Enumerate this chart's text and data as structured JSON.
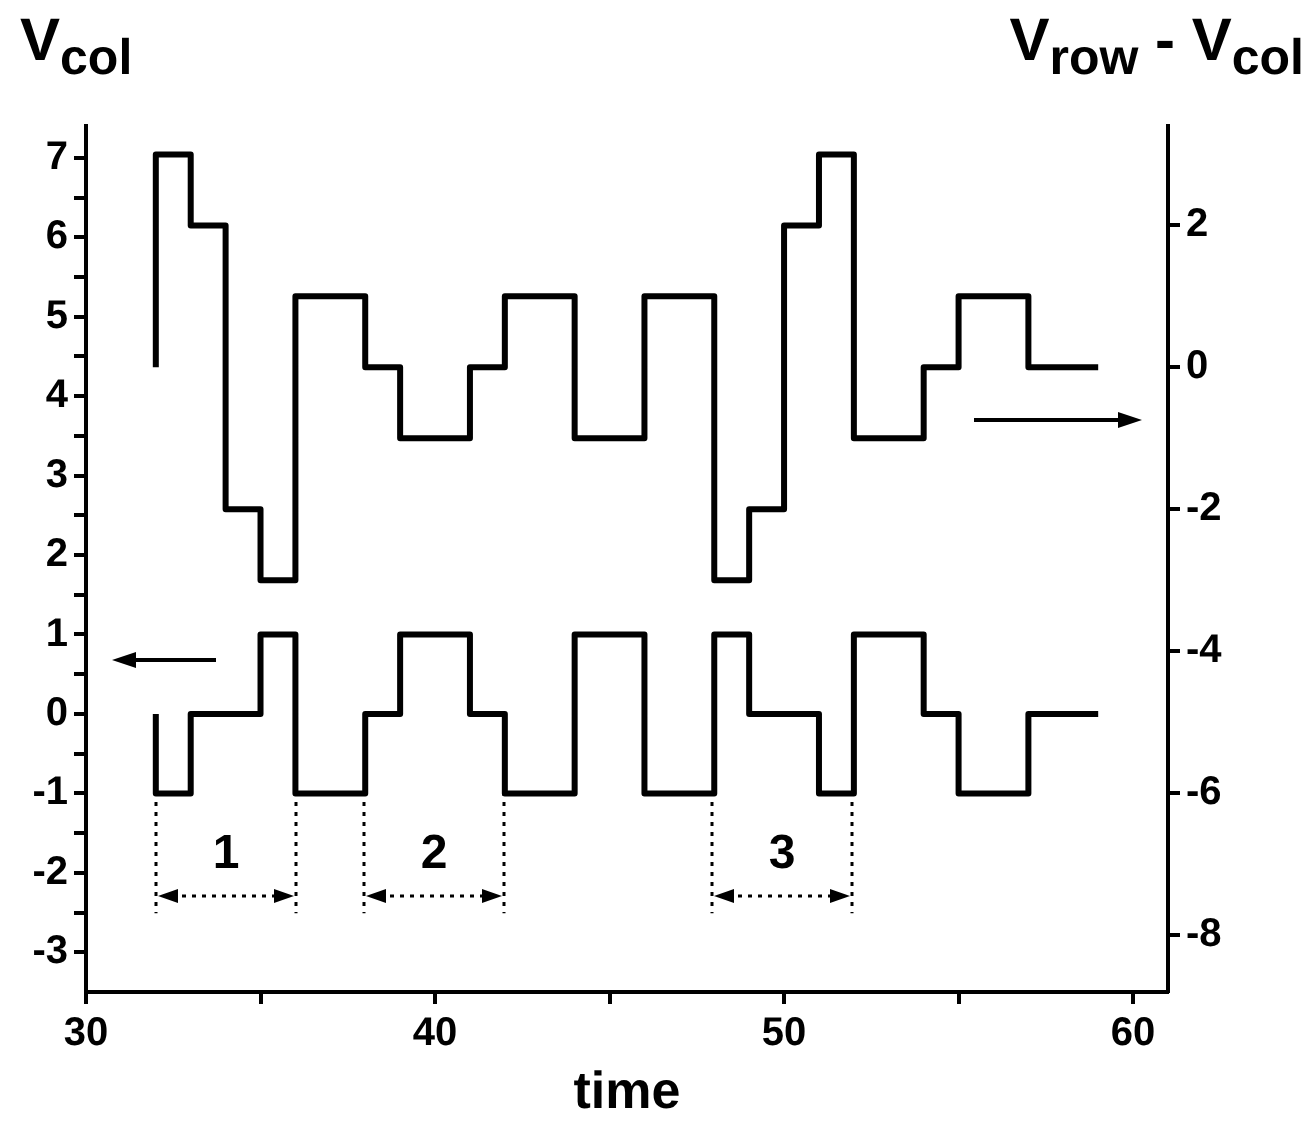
{
  "chart_data": {
    "type": "step",
    "xlabel": "time",
    "ylabel": "V$_{col}$",
    "y2label": "V$_{row}$ - V$_{col}$",
    "xlim": [
      30,
      61
    ],
    "xticks": [
      30,
      {
        "value": 35,
        "label": null
      },
      40,
      {
        "value": 45,
        "label": null
      },
      50,
      {
        "value": 55,
        "label": null
      },
      60
    ],
    "ylim": [
      -3.5,
      7.4
    ],
    "yticks": [
      -3,
      {
        "value": -2.5,
        "label": null
      },
      -2,
      {
        "value": -1.5,
        "label": null
      },
      -1,
      {
        "value": -0.5,
        "label": null
      },
      0,
      {
        "value": 0.5,
        "label": null
      },
      1,
      {
        "value": 1.5,
        "label": null
      },
      2,
      {
        "value": 2.5,
        "label": null
      },
      3,
      {
        "value": 3.5,
        "label": null
      },
      4,
      {
        "value": 4.5,
        "label": null
      },
      5,
      {
        "value": 5.5,
        "label": null
      },
      6,
      {
        "value": 6.5,
        "label": null
      },
      7
    ],
    "y2lim": [
      -8.8,
      3.4
    ],
    "y2ticks": [
      -8,
      -6,
      -4,
      -2,
      0,
      2
    ],
    "series": [
      {
        "color": "#000000",
        "x": [
          32,
          32,
          33,
          35,
          36,
          38,
          39,
          41,
          42,
          44,
          46,
          48,
          49,
          51,
          52,
          54,
          55,
          57,
          59
        ],
        "values": [
          0,
          -1,
          0,
          1,
          -1,
          0,
          1,
          0,
          -1,
          1,
          -1,
          1,
          0,
          -1,
          1,
          0,
          -1,
          0,
          0
        ]
      },
      {
        "color": "#000000",
        "axis": "y2",
        "x": [
          32,
          32,
          33,
          34,
          35,
          36,
          38,
          39,
          41,
          42,
          44,
          46,
          48,
          49,
          50,
          51,
          52,
          54,
          55,
          57,
          59
        ],
        "values": [
          0,
          3,
          2,
          -2,
          -3,
          1,
          0,
          -1,
          0,
          1,
          -1,
          1,
          -3,
          -2,
          2,
          3,
          -1,
          0,
          1,
          0,
          0
        ]
      }
    ],
    "annotations": [
      "1",
      "2",
      "3"
    ]
  }
}
